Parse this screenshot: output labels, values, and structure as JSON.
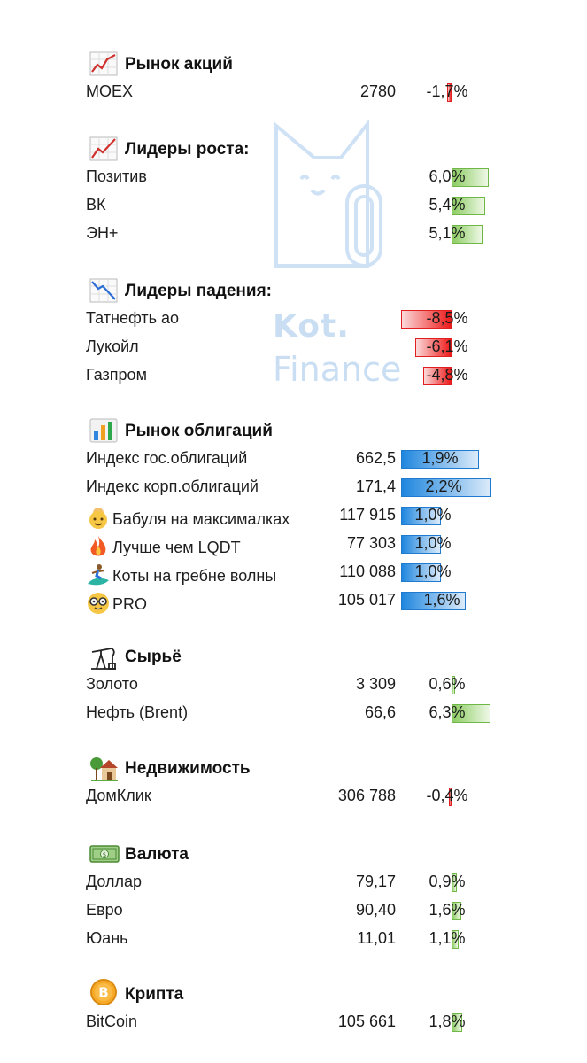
{
  "watermark": {
    "line1": "Kot.",
    "line2": "Finance",
    "icon": "cat-logo-icon"
  },
  "sections": [
    {
      "id": "stocks",
      "title": "Рынок акций",
      "icon": "chart-up-icon",
      "type": "change",
      "rows": [
        {
          "name": "MOEX",
          "value": "2780",
          "pct": "-1,7%",
          "change": -1.7
        }
      ]
    },
    {
      "id": "gainers",
      "title": "Лидеры роста:",
      "icon": "chart-increasing-icon",
      "type": "change",
      "rows": [
        {
          "name": "Позитив",
          "value": "",
          "pct": "6,0%",
          "change": 6.0
        },
        {
          "name": "ВК",
          "value": "",
          "pct": "5,4%",
          "change": 5.4
        },
        {
          "name": "ЭН+",
          "value": "",
          "pct": "5,1%",
          "change": 5.1
        }
      ]
    },
    {
      "id": "losers",
      "title": "Лидеры падения:",
      "icon": "chart-decreasing-icon",
      "type": "change",
      "rows": [
        {
          "name": "Татнефть ао",
          "value": "",
          "pct": "-8,5%",
          "change": -8.5
        },
        {
          "name": "Лукойл",
          "value": "",
          "pct": "-6,1%",
          "change": -6.1
        },
        {
          "name": "Газпром",
          "value": "",
          "pct": "-4,8%",
          "change": -4.8
        }
      ]
    },
    {
      "id": "bonds",
      "title": "Рынок облигаций",
      "icon": "bar-chart-icon",
      "type": "bond",
      "rows": [
        {
          "name": "Индекс гос.облигаций",
          "value": "662,5",
          "pct": "1,9%",
          "change": 1.9,
          "emoji": ""
        },
        {
          "name": "Индекс корп.облигаций",
          "value": "171,4",
          "pct": "2,2%",
          "change": 2.2,
          "emoji": ""
        },
        {
          "name": "Бабуля на максималках",
          "value": "117 915",
          "pct": "1,0%",
          "change": 1.0,
          "emoji": "grandma-emoji-icon"
        },
        {
          "name": "Лучше чем LQDT",
          "value": "77 303",
          "pct": "1,0%",
          "change": 1.0,
          "emoji": "fire-emoji-icon"
        },
        {
          "name": "Коты на гребне волны",
          "value": "110 088",
          "pct": "1,0%",
          "change": 1.0,
          "emoji": "surfer-emoji-icon"
        },
        {
          "name": "PRO",
          "value": "105 017",
          "pct": "1,6%",
          "change": 1.6,
          "emoji": "nerd-face-emoji-icon"
        }
      ]
    },
    {
      "id": "commodities",
      "title": "Сырьё",
      "icon": "oil-pump-icon",
      "type": "change",
      "rows": [
        {
          "name": "Золото",
          "value": "3 309",
          "pct": "0,6%",
          "change": 0.6
        },
        {
          "name": "Нефть (Brent)",
          "value": "66,6",
          "pct": "6,3%",
          "change": 6.3
        }
      ]
    },
    {
      "id": "realty",
      "title": "Недвижимость",
      "icon": "house-garden-icon",
      "type": "change",
      "rows": [
        {
          "name": "ДомКлик",
          "value": "306 788",
          "pct": "-0,4%",
          "change": -0.4
        }
      ]
    },
    {
      "id": "currency",
      "title": "Валюта",
      "icon": "banknote-icon",
      "type": "change",
      "rows": [
        {
          "name": "Доллар",
          "value": "79,17",
          "pct": "0,9%",
          "change": 0.9
        },
        {
          "name": "Евро",
          "value": "90,40",
          "pct": "1,6%",
          "change": 1.6
        },
        {
          "name": "Юань",
          "value": "11,01",
          "pct": "1,1%",
          "change": 1.1
        }
      ]
    },
    {
      "id": "crypto",
      "title": "Крипта",
      "icon": "bitcoin-coin-icon",
      "type": "change",
      "rows": [
        {
          "name": "BitCoin",
          "value": "105 661",
          "pct": "1,8%",
          "change": 1.8
        }
      ]
    }
  ]
}
